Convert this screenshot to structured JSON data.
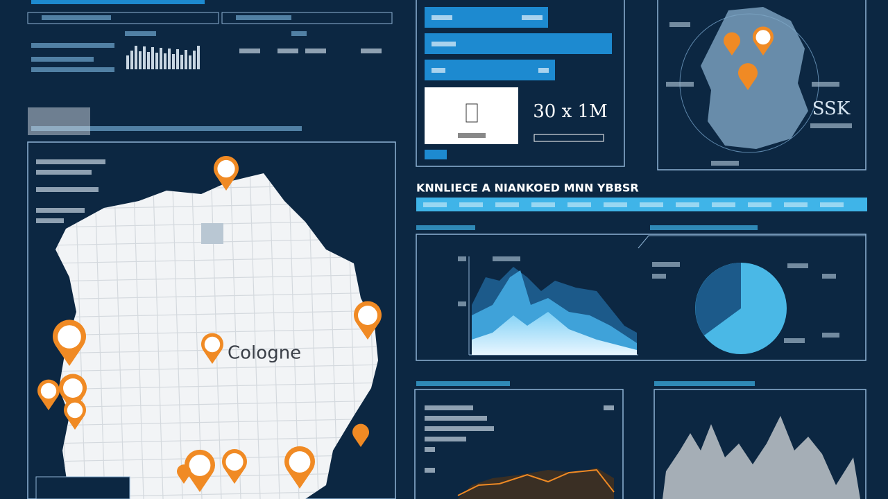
{
  "header": {
    "title": "KNNLIECE A NIANKOED MNN YBBSR"
  },
  "map": {
    "city_label": "Cologne"
  },
  "stats": {
    "metric": "30 x 1M",
    "code": "SSK"
  }
}
